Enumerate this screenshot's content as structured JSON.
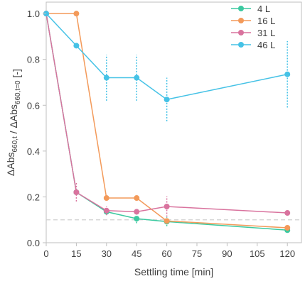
{
  "chart_data": {
    "type": "line",
    "title": "",
    "xlabel": "Settling time [min]",
    "ylabel": {
      "parts": [
        {
          "text": "ΔAbs",
          "sub": false
        },
        {
          "text": "660,t",
          "sub": true
        },
        {
          "text": " / ΔAbs",
          "sub": false
        },
        {
          "text": "660,t=0",
          "sub": true
        },
        {
          "text": " [-]",
          "sub": false
        }
      ]
    },
    "xlim": [
      0,
      127
    ],
    "ylim": [
      0,
      1.05
    ],
    "xticks": [
      0,
      15,
      30,
      45,
      60,
      75,
      90,
      105,
      120
    ],
    "yticks": [
      0.0,
      0.2,
      0.4,
      0.6,
      0.8,
      1.0
    ],
    "xtick_labels": [
      "0",
      "15",
      "30",
      "45",
      "60",
      "75",
      "90",
      "105",
      "120"
    ],
    "ytick_labels": [
      "0.0",
      "0.2",
      "0.4",
      "0.6",
      "0.8",
      "1.0"
    ],
    "grid": false,
    "legend_position": "top-right",
    "reference_line": {
      "y": 0.1,
      "color": "#d0d0d0",
      "style": "dashed"
    },
    "series": [
      {
        "name": "4 L",
        "color": "#3cc9a0",
        "x": [
          0,
          15,
          30,
          45,
          60,
          120
        ],
        "y": [
          1.0,
          0.22,
          0.135,
          0.105,
          0.092,
          0.055
        ],
        "err": [
          0,
          0,
          0.01,
          0.02,
          0.02,
          0.01
        ]
      },
      {
        "name": "16 L",
        "color": "#f39a5a",
        "x": [
          0,
          15,
          30,
          45,
          60,
          120
        ],
        "y": [
          1.0,
          1.0,
          0.195,
          0.195,
          0.095,
          0.065
        ],
        "err": [
          0,
          0,
          0,
          0,
          0,
          0
        ]
      },
      {
        "name": "31 L",
        "color": "#d9739e",
        "x": [
          0,
          15,
          30,
          45,
          60,
          120
        ],
        "y": [
          1.0,
          0.22,
          0.14,
          0.135,
          0.158,
          0.13
        ],
        "err": [
          0,
          0.04,
          0.02,
          0,
          0.045,
          0
        ]
      },
      {
        "name": "46 L",
        "color": "#45c2e6",
        "x": [
          0,
          15,
          30,
          45,
          60,
          120
        ],
        "y": [
          1.0,
          0.86,
          0.72,
          0.72,
          0.625,
          0.735
        ],
        "err": [
          0,
          0,
          0.1,
          0.1,
          0.095,
          0.145
        ]
      }
    ]
  }
}
